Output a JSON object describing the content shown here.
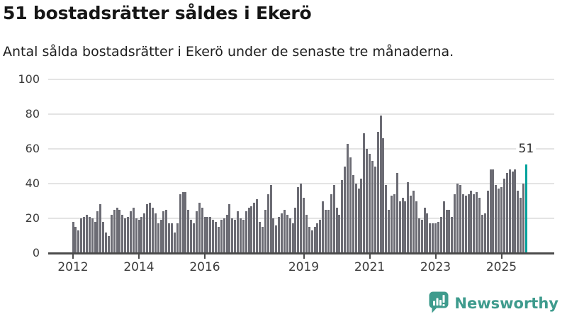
{
  "header": {
    "title": "51 bostadsrätter såldes i Ekerö",
    "subtitle": "Antal sålda bostadsrätter i Ekerö under de senaste tre månaderna."
  },
  "chart_data": {
    "type": "bar",
    "title": "51 bostadsrätter såldes i Ekerö",
    "subtitle": "Antal sålda bostadsrätter i Ekerö under de senaste tre månaderna.",
    "frequency": "monthly",
    "x_start": "2012-01",
    "x_end": "2025-10",
    "values": [
      18,
      15,
      13,
      20,
      21,
      22,
      21,
      20,
      18,
      24,
      28,
      18,
      12,
      10,
      22,
      25,
      26,
      25,
      22,
      20,
      21,
      24,
      26,
      20,
      19,
      21,
      23,
      28,
      29,
      26,
      23,
      17,
      19,
      24,
      25,
      17,
      17,
      12,
      17,
      34,
      35,
      35,
      25,
      19,
      17,
      24,
      29,
      26,
      21,
      21,
      21,
      19,
      18,
      15,
      19,
      20,
      22,
      28,
      20,
      19,
      24,
      20,
      19,
      24,
      26,
      27,
      29,
      31,
      18,
      15,
      25,
      34,
      39,
      20,
      16,
      21,
      23,
      25,
      22,
      20,
      17,
      26,
      38,
      40,
      32,
      22,
      15,
      13,
      15,
      17,
      19,
      30,
      25,
      25,
      34,
      39,
      26,
      22,
      42,
      50,
      63,
      55,
      45,
      40,
      37,
      43,
      69,
      60,
      57,
      53,
      50,
      70,
      79,
      66,
      39,
      25,
      33,
      34,
      46,
      30,
      32,
      30,
      41,
      33,
      36,
      30,
      20,
      19,
      26,
      23,
      17,
      17,
      17,
      18,
      21,
      30,
      25,
      25,
      21,
      34,
      40,
      39,
      34,
      33,
      34,
      36,
      34,
      35,
      32,
      22,
      23,
      36,
      48,
      48,
      39,
      37,
      38,
      43,
      46,
      48,
      47,
      48,
      36,
      32,
      40,
      51
    ],
    "highlight": {
      "index": 165,
      "value": 51,
      "label": "51",
      "color": "#00a29c"
    },
    "bar_color": "#6c6c74",
    "y_ticks": [
      0,
      20,
      40,
      60,
      80,
      100
    ],
    "ylim": [
      0,
      100
    ],
    "x_tick_labels": [
      "2012",
      "2014",
      "2016",
      "2019",
      "2021",
      "2023",
      "2025"
    ],
    "x_tick_month_index": [
      0,
      24,
      48,
      84,
      108,
      132,
      156
    ],
    "grid": true,
    "legend": false
  },
  "footer": {
    "brand": "Newsworthy",
    "logo_icon": "newsworthy-chart-bubble-icon",
    "brand_color": "#3e9b8d"
  }
}
